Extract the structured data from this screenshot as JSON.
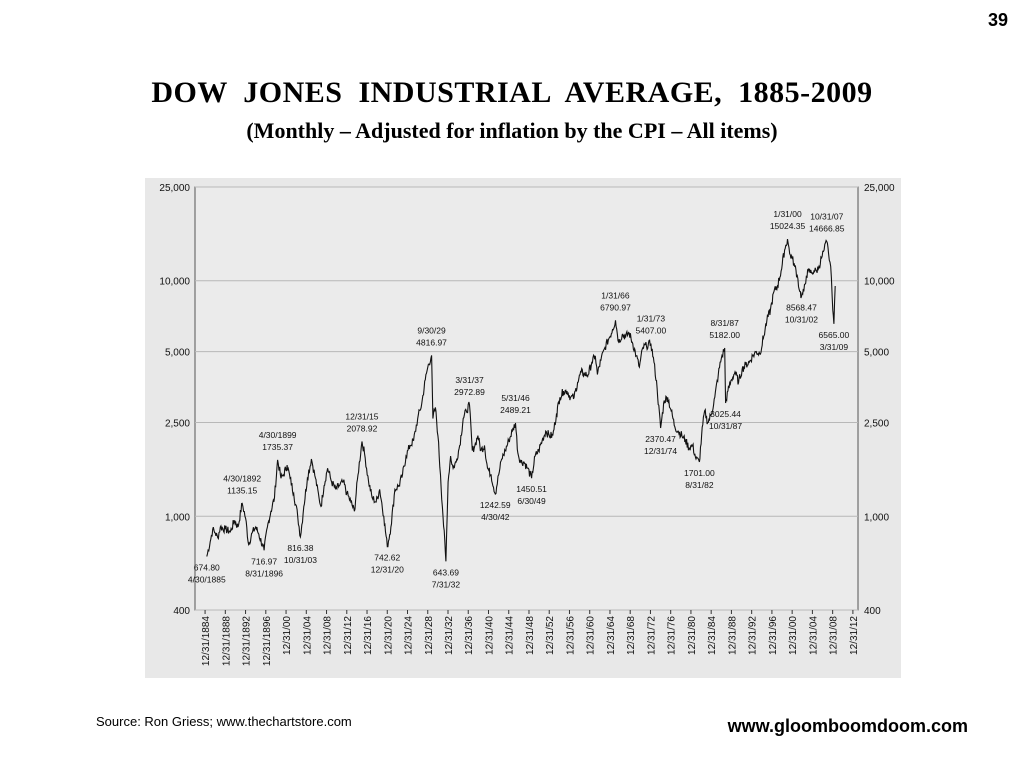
{
  "page": {
    "number": "39"
  },
  "title": "DOW  JONES  INDUSTRIAL  AVERAGE,  1885-2009",
  "subtitle": "(Monthly – Adjusted for inflation by the CPI – All items)",
  "footer": {
    "source": "Source: Ron Griess; www.thechartstore.com",
    "website": "www.gloomboomdoom.com"
  },
  "chart_data": {
    "type": "line",
    "title": "DOW  JONES  INDUSTRIAL  AVERAGE,  1885-2009",
    "subtitle": "(Monthly – Adjusted for inflation by the CPI – All items)",
    "xlabel": "",
    "ylabel": "",
    "yscale": "log",
    "xlim": [
      1883,
      2014
    ],
    "ylim": [
      400,
      25000
    ],
    "grid": "horizontal",
    "legend": "none",
    "colors": {
      "line": "#111111",
      "background": "#e8e8e8",
      "grid": "#b8b8b8"
    },
    "y_ticks": [
      {
        "value": 400,
        "label": "400"
      },
      {
        "value": 1000,
        "label": "1,000"
      },
      {
        "value": 2500,
        "label": "2,500"
      },
      {
        "value": 5000,
        "label": "5,000"
      },
      {
        "value": 10000,
        "label": "10,000"
      },
      {
        "value": 25000,
        "label": "25,000"
      }
    ],
    "x_ticks": [
      {
        "value": 1884.99,
        "label": "12/31/1884"
      },
      {
        "value": 1888.99,
        "label": "12/31/1888"
      },
      {
        "value": 1892.99,
        "label": "12/31/1892"
      },
      {
        "value": 1896.99,
        "label": "12/31/1896"
      },
      {
        "value": 1900.99,
        "label": "12/31/00"
      },
      {
        "value": 1904.99,
        "label": "12/31/04"
      },
      {
        "value": 1908.99,
        "label": "12/31/08"
      },
      {
        "value": 1912.99,
        "label": "12/31/12"
      },
      {
        "value": 1916.99,
        "label": "12/31/16"
      },
      {
        "value": 1920.99,
        "label": "12/31/20"
      },
      {
        "value": 1924.99,
        "label": "12/31/24"
      },
      {
        "value": 1928.99,
        "label": "12/31/28"
      },
      {
        "value": 1932.99,
        "label": "12/31/32"
      },
      {
        "value": 1936.99,
        "label": "12/31/36"
      },
      {
        "value": 1940.99,
        "label": "12/31/40"
      },
      {
        "value": 1944.99,
        "label": "12/31/44"
      },
      {
        "value": 1948.99,
        "label": "12/31/48"
      },
      {
        "value": 1952.99,
        "label": "12/31/52"
      },
      {
        "value": 1956.99,
        "label": "12/31/56"
      },
      {
        "value": 1960.99,
        "label": "12/31/60"
      },
      {
        "value": 1964.99,
        "label": "12/31/64"
      },
      {
        "value": 1968.99,
        "label": "12/31/68"
      },
      {
        "value": 1972.99,
        "label": "12/31/72"
      },
      {
        "value": 1976.99,
        "label": "12/31/76"
      },
      {
        "value": 1980.99,
        "label": "12/31/80"
      },
      {
        "value": 1984.99,
        "label": "12/31/84"
      },
      {
        "value": 1988.99,
        "label": "12/31/88"
      },
      {
        "value": 1992.99,
        "label": "12/31/92"
      },
      {
        "value": 1996.99,
        "label": "12/31/96"
      },
      {
        "value": 2000.99,
        "label": "12/31/00"
      },
      {
        "value": 2004.99,
        "label": "12/31/04"
      },
      {
        "value": 2008.99,
        "label": "12/31/08"
      },
      {
        "value": 2012.99,
        "label": "12/31/12"
      }
    ],
    "series": [
      {
        "x": [
          1885.33,
          1886.0,
          1886.5,
          1887.0,
          1887.5,
          1888.0,
          1889.0,
          1890.0,
          1890.8,
          1891.5,
          1892.33,
          1893.0,
          1893.6,
          1894.3,
          1895.0,
          1895.6,
          1896.66,
          1897.3,
          1898.0,
          1898.7,
          1899.33,
          1900.0,
          1900.5,
          1901.2,
          1901.8,
          1902.5,
          1903.3,
          1903.83,
          1904.5,
          1905.2,
          1906.0,
          1906.8,
          1907.5,
          1907.9,
          1908.5,
          1909.2,
          1910.0,
          1910.8,
          1911.5,
          1912.3,
          1913.0,
          1913.8,
          1914.5,
          1915.2,
          1915.99,
          1916.5,
          1917.3,
          1918.0,
          1918.8,
          1919.5,
          1920.3,
          1920.99,
          1921.7,
          1922.5,
          1923.3,
          1924.0,
          1924.7,
          1925.5,
          1926.2,
          1927.0,
          1927.8,
          1928.5,
          1929.0,
          1929.74,
          1930.0,
          1930.5,
          1931.0,
          1931.5,
          1932.0,
          1932.58,
          1933.0,
          1933.5,
          1934.0,
          1934.6,
          1935.3,
          1936.0,
          1936.6,
          1937.24,
          1937.8,
          1938.3,
          1938.9,
          1939.5,
          1940.2,
          1940.8,
          1941.5,
          1942.33,
          1943.0,
          1943.6,
          1944.3,
          1945.0,
          1945.7,
          1946.33,
          1946.8,
          1947.4,
          1948.0,
          1948.7,
          1949.5,
          1950.2,
          1950.9,
          1951.6,
          1952.3,
          1953.0,
          1953.7,
          1954.4,
          1955.1,
          1955.8,
          1956.5,
          1957.2,
          1957.9,
          1958.6,
          1959.3,
          1960.0,
          1960.7,
          1961.4,
          1962.1,
          1962.5,
          1963.2,
          1964.0,
          1964.8,
          1965.5,
          1966.08,
          1966.7,
          1967.4,
          1968.1,
          1968.8,
          1969.5,
          1970.2,
          1970.8,
          1971.5,
          1972.2,
          1973.08,
          1973.7,
          1974.3,
          1974.99,
          1975.7,
          1976.4,
          1977.1,
          1977.8,
          1978.5,
          1979.2,
          1979.9,
          1980.6,
          1981.3,
          1982.0,
          1982.66,
          1983.1,
          1983.7,
          1984.3,
          1985.0,
          1985.7,
          1986.4,
          1987.0,
          1987.66,
          1987.83,
          1988.3,
          1989.0,
          1989.7,
          1990.4,
          1991.1,
          1991.8,
          1992.5,
          1993.2,
          1993.9,
          1994.6,
          1995.3,
          1996.0,
          1996.7,
          1997.4,
          1998.1,
          1998.8,
          1999.5,
          2000.08,
          2000.5,
          2001.0,
          2001.5,
          2002.0,
          2002.5,
          2002.83,
          2003.3,
          2003.8,
          2004.3,
          2004.8,
          2005.3,
          2005.8,
          2006.3,
          2006.8,
          2007.3,
          2007.83,
          2008.2,
          2008.6,
          2008.9,
          2009.24,
          2009.5
        ],
        "values": [
          674.8,
          780,
          880,
          850,
          810,
          900,
          880,
          860,
          960,
          900,
          1135.15,
          980,
          760,
          850,
          900,
          840,
          716.97,
          900,
          1050,
          1200,
          1735.37,
          1450,
          1500,
          1650,
          1450,
          1250,
          1000,
          816.38,
          1100,
          1450,
          1750,
          1450,
          1200,
          1100,
          1350,
          1600,
          1400,
          1300,
          1350,
          1400,
          1250,
          1150,
          1050,
          1500,
          2078.92,
          1850,
          1400,
          1200,
          1150,
          1300,
          1000,
          742.62,
          900,
          1300,
          1350,
          1500,
          1800,
          2000,
          2100,
          2600,
          3000,
          3800,
          4300,
          4816.97,
          2600,
          2900,
          2200,
          1500,
          1000,
          643.69,
          1400,
          1800,
          1600,
          1700,
          2000,
          2600,
          2800,
          2972.89,
          1900,
          2000,
          2200,
          1900,
          2000,
          1600,
          1500,
          1242.59,
          1500,
          1750,
          1900,
          2100,
          2300,
          2489.21,
          1850,
          1700,
          1700,
          1600,
          1450.51,
          1800,
          1900,
          2100,
          2300,
          2200,
          2200,
          2700,
          3200,
          3400,
          3400,
          3200,
          3200,
          3700,
          4100,
          4000,
          4000,
          4500,
          4800,
          4000,
          4600,
          5200,
          5700,
          6200,
          6790.97,
          5500,
          5900,
          5800,
          6000,
          5400,
          4800,
          4300,
          5200,
          5300,
          5407,
          4500,
          3500,
          2370.47,
          3100,
          3200,
          2800,
          2400,
          2300,
          2200,
          2100,
          1950,
          2000,
          1750,
          1701,
          2200,
          2800,
          2500,
          2700,
          3200,
          4000,
          4700,
          5182,
          3025.44,
          3400,
          3800,
          4100,
          3700,
          4200,
          4400,
          4500,
          4800,
          5000,
          4900,
          5700,
          6800,
          7500,
          9000,
          9500,
          11000,
          13500,
          15024.35,
          13000,
          12500,
          11500,
          10500,
          9000,
          8568.47,
          9000,
          10500,
          11000,
          10800,
          11000,
          11000,
          11500,
          12500,
          13500,
          14666.85,
          13000,
          11500,
          8500,
          6565,
          9500
        ]
      }
    ],
    "annotations": [
      {
        "x": 1885.33,
        "y": 674.8,
        "lines": [
          "674.80",
          "4/30/1885"
        ]
      },
      {
        "x": 1892.33,
        "y": 1135.15,
        "lines": [
          "4/30/1892",
          "1135.15"
        ]
      },
      {
        "x": 1896.66,
        "y": 716.97,
        "lines": [
          "716.97",
          "8/31/1896"
        ]
      },
      {
        "x": 1899.33,
        "y": 1735.37,
        "lines": [
          "4/30/1899",
          "1735.37"
        ]
      },
      {
        "x": 1903.83,
        "y": 816.38,
        "lines": [
          "816.38",
          "10/31/03"
        ]
      },
      {
        "x": 1915.99,
        "y": 2078.92,
        "lines": [
          "12/31/15",
          "2078.92"
        ]
      },
      {
        "x": 1920.99,
        "y": 742.62,
        "lines": [
          "742.62",
          "12/31/20"
        ]
      },
      {
        "x": 1929.74,
        "y": 4816.97,
        "lines": [
          "9/30/29",
          "4816.97"
        ]
      },
      {
        "x": 1932.58,
        "y": 643.69,
        "lines": [
          "643.69",
          "7/31/32"
        ]
      },
      {
        "x": 1937.24,
        "y": 2972.89,
        "lines": [
          "3/31/37",
          "2972.89"
        ]
      },
      {
        "x": 1942.33,
        "y": 1242.59,
        "lines": [
          "1242.59",
          "4/30/42"
        ]
      },
      {
        "x": 1946.33,
        "y": 2489.21,
        "lines": [
          "5/31/46",
          "2489.21"
        ]
      },
      {
        "x": 1949.5,
        "y": 1450.51,
        "lines": [
          "1450.51",
          "6/30/49"
        ]
      },
      {
        "x": 1966.08,
        "y": 6790.97,
        "lines": [
          "1/31/66",
          "6790.97"
        ]
      },
      {
        "x": 1973.08,
        "y": 5407.0,
        "lines": [
          "1/31/73",
          "5407.00"
        ]
      },
      {
        "x": 1974.99,
        "y": 2370.47,
        "lines": [
          "2370.47",
          "12/31/74"
        ]
      },
      {
        "x": 1982.66,
        "y": 1701.0,
        "lines": [
          "1701.00",
          "8/31/82"
        ]
      },
      {
        "x": 1987.66,
        "y": 5182.0,
        "lines": [
          "8/31/87",
          "5182.00"
        ]
      },
      {
        "x": 1987.83,
        "y": 3025.44,
        "lines": [
          "3025.44",
          "10/31/87"
        ]
      },
      {
        "x": 2000.08,
        "y": 15024.35,
        "lines": [
          "1/31/00",
          "15024.35"
        ]
      },
      {
        "x": 2002.83,
        "y": 8568.47,
        "lines": [
          "8568.47",
          "10/31/02"
        ]
      },
      {
        "x": 2007.83,
        "y": 14666.85,
        "lines": [
          "10/31/07",
          "14666.85"
        ]
      },
      {
        "x": 2009.24,
        "y": 6565.0,
        "lines": [
          "6565.00",
          "3/31/09"
        ]
      }
    ]
  }
}
